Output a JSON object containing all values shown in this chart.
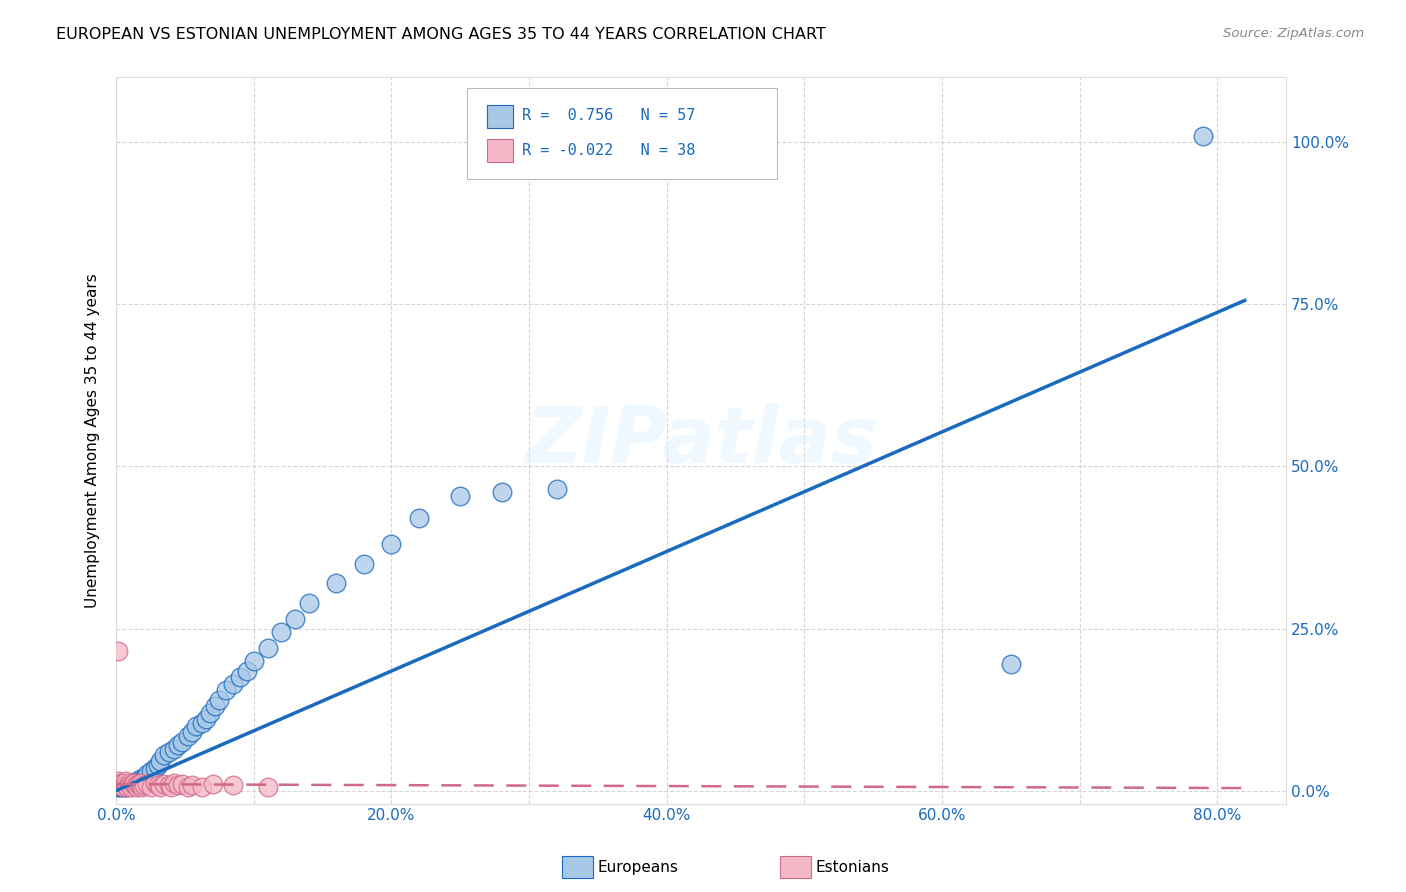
{
  "title": "EUROPEAN VS ESTONIAN UNEMPLOYMENT AMONG AGES 35 TO 44 YEARS CORRELATION CHART",
  "source": "Source: ZipAtlas.com",
  "xlabel_ticks": [
    "0.0%",
    "",
    "20.0%",
    "",
    "40.0%",
    "",
    "60.0%",
    "",
    "80.0%"
  ],
  "xtick_vals": [
    0.0,
    0.1,
    0.2,
    0.3,
    0.4,
    0.5,
    0.6,
    0.7,
    0.8
  ],
  "ylabel_ticks": [
    "0.0%",
    "25.0%",
    "50.0%",
    "75.0%",
    "100.0%"
  ],
  "ytick_vals": [
    0.0,
    0.25,
    0.5,
    0.75,
    1.0
  ],
  "ylabel_label": "Unemployment Among Ages 35 to 44 years",
  "legend_label1": "Europeans",
  "legend_label2": "Estonians",
  "color_blue": "#a8c8e8",
  "color_pink": "#f4b8c8",
  "color_line_blue": "#1a6abf",
  "color_line_pink": "#d06888",
  "xlim": [
    0.0,
    0.85
  ],
  "ylim": [
    -0.02,
    1.1
  ],
  "blue_scatter_x": [
    0.001,
    0.002,
    0.003,
    0.003,
    0.004,
    0.005,
    0.005,
    0.006,
    0.007,
    0.008,
    0.009,
    0.01,
    0.011,
    0.012,
    0.013,
    0.014,
    0.015,
    0.016,
    0.017,
    0.018,
    0.02,
    0.022,
    0.025,
    0.028,
    0.03,
    0.032,
    0.035,
    0.038,
    0.042,
    0.045,
    0.048,
    0.052,
    0.055,
    0.058,
    0.062,
    0.065,
    0.068,
    0.072,
    0.075,
    0.08,
    0.085,
    0.09,
    0.095,
    0.1,
    0.11,
    0.12,
    0.13,
    0.14,
    0.16,
    0.18,
    0.2,
    0.22,
    0.25,
    0.28,
    0.32,
    0.65,
    0.79
  ],
  "blue_scatter_y": [
    0.005,
    0.008,
    0.006,
    0.012,
    0.007,
    0.005,
    0.01,
    0.008,
    0.006,
    0.009,
    0.007,
    0.008,
    0.01,
    0.009,
    0.012,
    0.01,
    0.015,
    0.013,
    0.018,
    0.015,
    0.02,
    0.025,
    0.03,
    0.035,
    0.04,
    0.045,
    0.055,
    0.06,
    0.065,
    0.07,
    0.075,
    0.085,
    0.09,
    0.1,
    0.105,
    0.11,
    0.12,
    0.13,
    0.14,
    0.155,
    0.165,
    0.175,
    0.185,
    0.2,
    0.22,
    0.245,
    0.265,
    0.29,
    0.32,
    0.35,
    0.38,
    0.42,
    0.455,
    0.46,
    0.465,
    0.195,
    1.01
  ],
  "pink_scatter_x": [
    0.001,
    0.002,
    0.003,
    0.004,
    0.005,
    0.006,
    0.007,
    0.007,
    0.008,
    0.009,
    0.01,
    0.011,
    0.012,
    0.013,
    0.014,
    0.015,
    0.016,
    0.017,
    0.018,
    0.019,
    0.02,
    0.022,
    0.025,
    0.028,
    0.03,
    0.032,
    0.035,
    0.038,
    0.04,
    0.042,
    0.045,
    0.048,
    0.052,
    0.055,
    0.062,
    0.07,
    0.085,
    0.11
  ],
  "pink_scatter_y": [
    0.015,
    0.01,
    0.008,
    0.012,
    0.006,
    0.01,
    0.008,
    0.015,
    0.006,
    0.012,
    0.008,
    0.006,
    0.01,
    0.012,
    0.008,
    0.006,
    0.01,
    0.008,
    0.012,
    0.006,
    0.008,
    0.01,
    0.006,
    0.012,
    0.008,
    0.006,
    0.01,
    0.008,
    0.006,
    0.012,
    0.008,
    0.01,
    0.006,
    0.008,
    0.006,
    0.01,
    0.008,
    0.006
  ],
  "pink_outlier_x": [
    0.001
  ],
  "pink_outlier_y": [
    0.215
  ],
  "blue_line_x": [
    -0.01,
    0.82
  ],
  "blue_line_y": [
    -0.009,
    0.756
  ],
  "pink_line_x": [
    0.0,
    0.82
  ],
  "pink_line_y": [
    0.01,
    0.004
  ]
}
